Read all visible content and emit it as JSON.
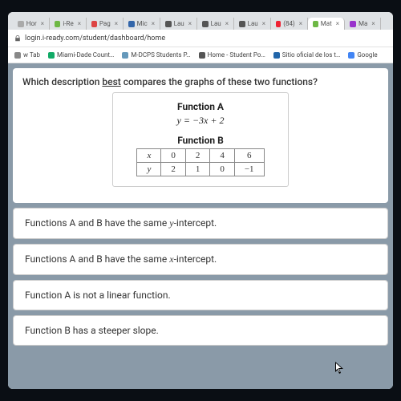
{
  "tabs": [
    {
      "label": "Hor",
      "color": "#aaa"
    },
    {
      "label": "i-Re",
      "color": "#6eb845"
    },
    {
      "label": "Pag",
      "color": "#d44"
    },
    {
      "label": "Mic",
      "color": "#36a"
    },
    {
      "label": "Lau",
      "color": "#555"
    },
    {
      "label": "Lau",
      "color": "#555"
    },
    {
      "label": "Lau",
      "color": "#555"
    },
    {
      "label": "(84)",
      "color": "#e23"
    },
    {
      "label": "Mat",
      "color": "#6eb845",
      "active": true
    },
    {
      "label": "Ma",
      "color": "#93c"
    }
  ],
  "url": "login.i-ready.com/student/dashboard/home",
  "bookmarks": [
    {
      "label": "w Tab",
      "color": "#888"
    },
    {
      "label": "Miami-Dade Count…",
      "color": "#1a6"
    },
    {
      "label": "M-DCPS Students P…",
      "color": "#69b"
    },
    {
      "label": "Home - Student Po…",
      "color": "#555"
    },
    {
      "label": "Sitio oficial de los t…",
      "color": "#26a"
    },
    {
      "label": "Google",
      "color": "#4285f4"
    }
  ],
  "question_pre": "Which description ",
  "question_u": "best",
  "question_post": " compares the graphs of these two functions?",
  "funcA": {
    "label": "Function A",
    "eq": "y = −3x + 2"
  },
  "funcB": {
    "label": "Function B",
    "x": [
      "0",
      "2",
      "4",
      "6"
    ],
    "y": [
      "2",
      "1",
      "0",
      "−1"
    ]
  },
  "labels": {
    "x": "x",
    "y": "y"
  },
  "answers": [
    {
      "pre": "Functions A and B have the same ",
      "mi": "y",
      "post": "-intercept."
    },
    {
      "pre": "Functions A and B have the same ",
      "mi": "x",
      "post": "-intercept."
    },
    {
      "pre": "Function A is not a linear function.",
      "mi": "",
      "post": ""
    },
    {
      "pre": "Function B has a steeper slope.",
      "mi": "",
      "post": ""
    }
  ]
}
